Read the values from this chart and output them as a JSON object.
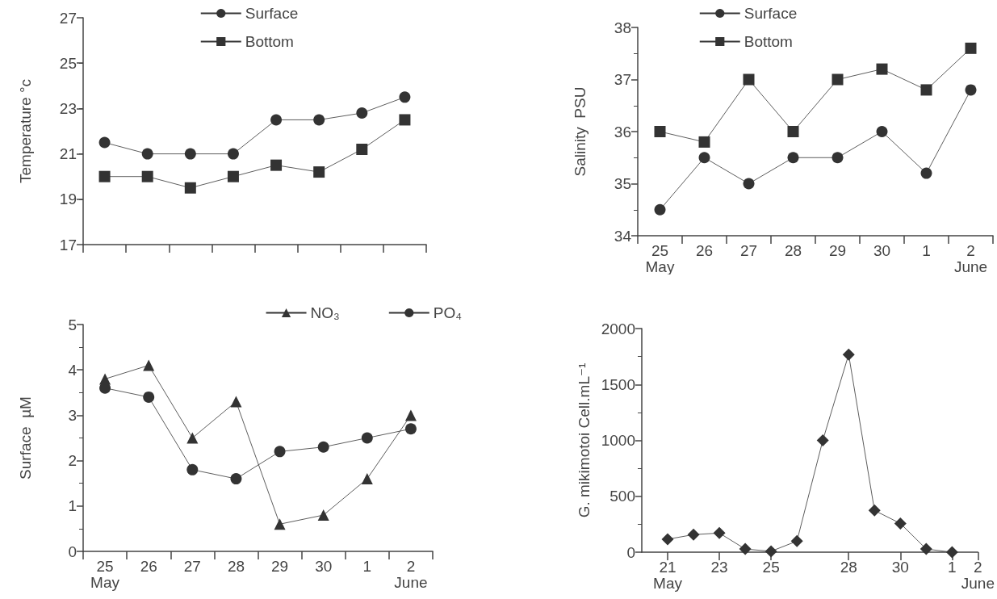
{
  "chart_data": [
    {
      "type": "line",
      "ylabel": "Temperature °c",
      "categories": [
        null,
        null,
        null,
        null,
        null,
        null,
        null,
        null
      ],
      "ylim": [
        17,
        27
      ],
      "yticks": [
        17,
        19,
        21,
        23,
        25,
        27
      ],
      "tick_labels": "y",
      "legend": "top",
      "grid": false,
      "series": [
        {
          "name": "Surface",
          "color": "#333333",
          "marker": "circle",
          "values": [
            21.5,
            21.0,
            21.0,
            21.0,
            22.5,
            22.5,
            22.8,
            23.5
          ]
        },
        {
          "name": "Bottom",
          "color": "#333333",
          "marker": "square",
          "values": [
            20.0,
            20.0,
            19.5,
            20.0,
            20.5,
            20.2,
            21.2,
            22.5
          ]
        }
      ]
    },
    {
      "type": "line",
      "ylabel": "Salinity  PSU",
      "categories": [
        "25\nMay",
        "26",
        "27",
        "28",
        "29",
        "30",
        "1",
        "2\nJune"
      ],
      "ylim": [
        34,
        38
      ],
      "yticks": [
        34,
        35,
        36,
        37,
        38
      ],
      "legend": "top",
      "grid": false,
      "series": [
        {
          "name": "Surface",
          "color": "#333333",
          "marker": "circle",
          "values": [
            34.5,
            35.5,
            35.0,
            35.5,
            35.5,
            36.0,
            35.2,
            36.8
          ]
        },
        {
          "name": "Bottom",
          "color": "#333333",
          "marker": "square",
          "values": [
            36.0,
            35.8,
            37.0,
            36.0,
            37.0,
            37.2,
            36.8,
            37.6
          ]
        }
      ]
    },
    {
      "type": "line",
      "ylabel": "Surface  µM",
      "categories": [
        "25\nMay",
        "26",
        "27",
        "28",
        "29",
        "30",
        "1",
        "2\nJune"
      ],
      "ylim": [
        0,
        5
      ],
      "yticks": [
        0,
        1,
        2,
        3,
        4,
        5
      ],
      "legend": "top right",
      "grid": false,
      "series": [
        {
          "name": "NO₃",
          "color": "#333333",
          "marker": "triangle",
          "values": [
            3.8,
            4.1,
            2.5,
            3.3,
            0.6,
            0.8,
            1.6,
            3.0
          ]
        },
        {
          "name": "PO₄",
          "color": "#333333",
          "marker": "circle",
          "values": [
            3.6,
            3.4,
            1.8,
            1.6,
            2.2,
            2.3,
            2.5,
            2.7
          ]
        }
      ]
    },
    {
      "type": "line",
      "ylabel": "G. mikimotoi Cell.mL⁻¹",
      "x": [
        "--05-21",
        "--05-22",
        "--05-23",
        "--05-24",
        "--05-25",
        "--05-26",
        "--05-27",
        "--05-28",
        "--05-29",
        "--05-30",
        "--05-31",
        "--06-01"
      ],
      "xlim": [
        "--05-20",
        "--06-02"
      ],
      "xticks": [
        {
          "value": "--05-21",
          "label": "21\nMay"
        },
        {
          "value": "--05-23",
          "label": "23"
        },
        {
          "value": "--05-25",
          "label": "25"
        },
        {
          "value": "--05-28",
          "label": "28"
        },
        {
          "value": "--05-30",
          "label": "30"
        },
        {
          "value": "--06-01",
          "label": "1"
        },
        {
          "value": "--06-02",
          "label": "2\nJune"
        }
      ],
      "ylim": [
        0,
        2000
      ],
      "yticks": [
        0,
        500,
        1000,
        1500,
        2000
      ],
      "legend": false,
      "grid": false,
      "series": [
        {
          "color": "#333333",
          "marker": "diamond",
          "values": [
            116,
            157,
            171,
            28,
            8,
            99,
            1000,
            1768,
            373,
            257,
            28,
            0
          ]
        }
      ]
    }
  ]
}
